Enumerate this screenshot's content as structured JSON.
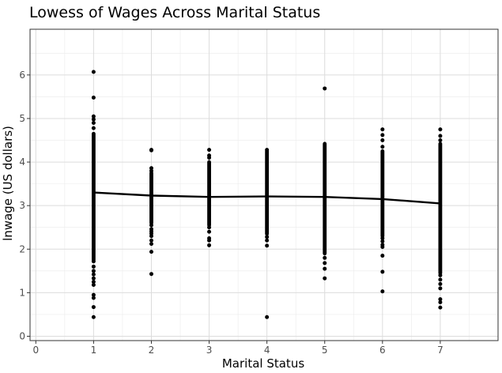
{
  "chart_data": {
    "type": "scatter",
    "title": "Lowess of Wages Across Marital Status",
    "xlabel": "Marital Status",
    "ylabel": "lnwage (US dollars)",
    "xlim": [
      -0.1,
      8.0
    ],
    "ylim": [
      -0.1,
      7.05
    ],
    "x_ticks": [
      0,
      1,
      2,
      3,
      4,
      5,
      6,
      7
    ],
    "y_ticks": [
      0,
      1,
      2,
      3,
      4,
      5,
      6
    ],
    "grid": true,
    "legend": "none",
    "colors": {
      "points": "#000000",
      "line": "#000000",
      "grid": "#ebebeb",
      "panel_border": "#333333"
    },
    "series": [
      {
        "kind": "points",
        "groups": [
          {
            "x": 1,
            "dense": [
              1.75,
              4.65
            ],
            "sparse": [
              6.07,
              5.48,
              5.05,
              4.98,
              4.9,
              4.78,
              1.72,
              1.6,
              1.5,
              1.42,
              1.33,
              1.25,
              1.18,
              0.95,
              0.88,
              0.67,
              0.44
            ]
          },
          {
            "x": 2,
            "dense": [
              2.6,
              3.75
            ],
            "sparse": [
              4.28,
              4.27,
              3.86,
              3.8,
              2.55,
              2.46,
              2.41,
              2.36,
              2.3,
              2.2,
              2.12,
              1.94,
              1.43
            ]
          },
          {
            "x": 3,
            "dense": [
              2.55,
              4.0
            ],
            "sparse": [
              4.28,
              4.15,
              4.1,
              2.5,
              2.4,
              2.25,
              2.2,
              2.09
            ]
          },
          {
            "x": 4,
            "dense": [
              2.35,
              4.25
            ],
            "sparse": [
              4.28,
              2.28,
              2.2,
              2.08,
              0.44
            ]
          },
          {
            "x": 5,
            "dense": [
              1.9,
              4.42
            ],
            "sparse": [
              5.69,
              1.8,
              1.68,
              1.55,
              1.33
            ]
          },
          {
            "x": 6,
            "dense": [
              2.3,
              4.25
            ],
            "sparse": [
              4.75,
              4.62,
              4.5,
              4.35,
              2.25,
              2.18,
              2.1,
              2.05,
              1.85,
              1.48,
              1.03
            ]
          },
          {
            "x": 7,
            "dense": [
              1.45,
              4.42
            ],
            "sparse": [
              4.75,
              4.6,
              4.5,
              1.4,
              1.3,
              1.2,
              1.1,
              0.85,
              0.78,
              0.66
            ]
          }
        ]
      },
      {
        "kind": "lowess",
        "x": [
          1,
          2,
          3,
          4,
          5,
          6,
          7
        ],
        "y": [
          3.3,
          3.23,
          3.2,
          3.21,
          3.2,
          3.15,
          3.05
        ]
      }
    ]
  }
}
